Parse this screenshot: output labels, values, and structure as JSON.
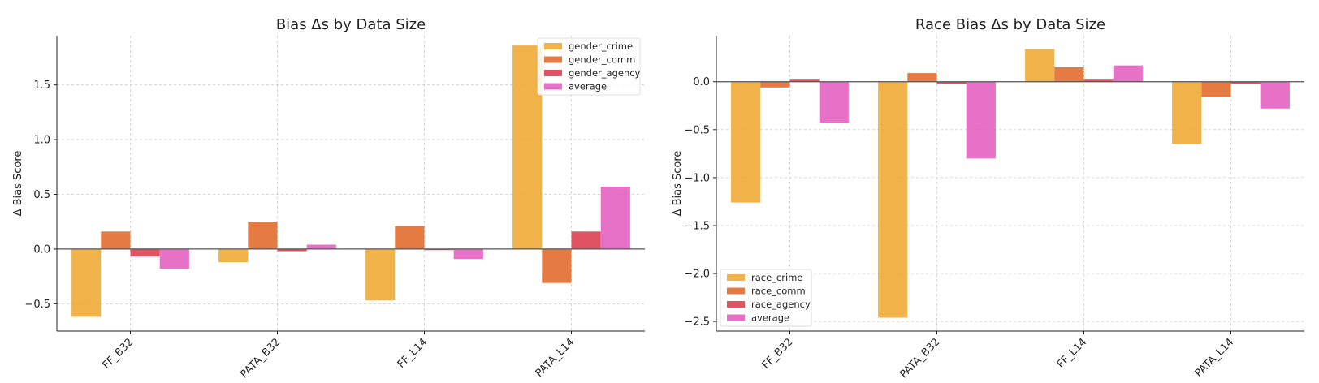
{
  "chart_data": [
    {
      "type": "bar",
      "title": "Bias Δs by Data Size",
      "xlabel": "",
      "ylabel": "Δ Bias Score",
      "ylim": [
        -0.75,
        1.95
      ],
      "yticks": [
        -0.5,
        0.0,
        0.5,
        1.0,
        1.5
      ],
      "ytick_labels": [
        "−0.5",
        "0.0",
        "0.5",
        "1.0",
        "1.5"
      ],
      "legend_position": "top-right",
      "categories": [
        "FF_B32",
        "PATA_B32",
        "FF_L14",
        "PATA_L14"
      ],
      "series": [
        {
          "name": "gender_crime",
          "color": "#f0ad3a",
          "values": [
            -0.62,
            -0.12,
            -0.47,
            1.86
          ]
        },
        {
          "name": "gender_comm",
          "color": "#e36f33",
          "values": [
            0.16,
            0.25,
            0.21,
            -0.31
          ]
        },
        {
          "name": "gender_agency",
          "color": "#dd4455",
          "values": [
            -0.07,
            -0.02,
            -0.01,
            0.16
          ]
        },
        {
          "name": "average",
          "color": "#e565c2",
          "values": [
            -0.18,
            0.04,
            -0.09,
            0.57
          ]
        }
      ]
    },
    {
      "type": "bar",
      "title": "Race Bias Δs by Data Size",
      "xlabel": "",
      "ylabel": "Δ Bias Score",
      "ylim": [
        -2.6,
        0.48
      ],
      "yticks": [
        -2.5,
        -2.0,
        -1.5,
        -1.0,
        -0.5,
        0.0
      ],
      "ytick_labels": [
        "−2.5",
        "−2.0",
        "−1.5",
        "−1.0",
        "−0.5",
        "0.0"
      ],
      "legend_position": "bottom-left",
      "categories": [
        "FF_B32",
        "PATA_B32",
        "FF_L14",
        "PATA_L14"
      ],
      "series": [
        {
          "name": "race_crime",
          "color": "#f0ad3a",
          "values": [
            -1.26,
            -2.46,
            0.34,
            -0.65
          ]
        },
        {
          "name": "race_comm",
          "color": "#e36f33",
          "values": [
            -0.06,
            0.09,
            0.15,
            -0.16
          ]
        },
        {
          "name": "race_agency",
          "color": "#dd4455",
          "values": [
            0.03,
            -0.02,
            0.03,
            -0.02
          ]
        },
        {
          "name": "average",
          "color": "#e565c2",
          "values": [
            -0.43,
            -0.8,
            0.17,
            -0.28
          ]
        }
      ]
    }
  ]
}
